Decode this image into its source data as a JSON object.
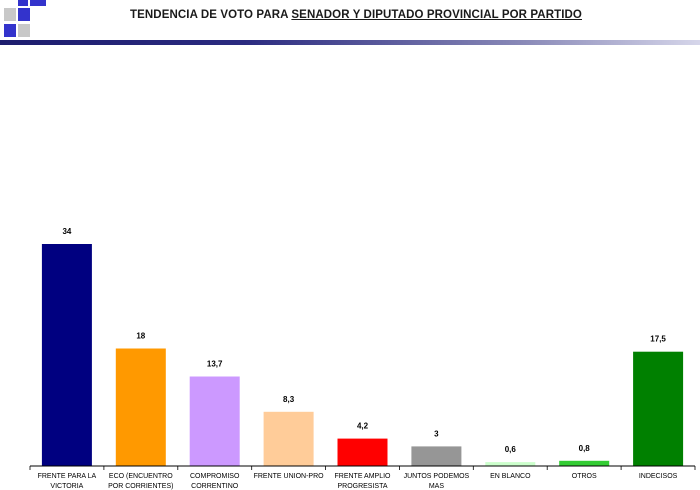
{
  "header": {
    "title_prefix": "TENDENCIA DE VOTO PARA ",
    "title_underlined": "SENADOR Y DIPUTADO PROVINCIAL POR PARTIDO"
  },
  "chart_data": {
    "type": "bar",
    "title": "TENDENCIA DE VOTO PARA SENADOR Y DIPUTADO PROVINCIAL POR PARTIDO",
    "xlabel": "",
    "ylabel": "",
    "ylim": [
      0,
      34
    ],
    "grid": false,
    "legend": "none",
    "categories": [
      [
        "FRENTE PARA LA",
        "VICTORIA"
      ],
      [
        "ECO (ENCUENTRO",
        "POR CORRIENTES)"
      ],
      [
        "COMPROMISO",
        "CORRENTINO"
      ],
      [
        "FRENTE UNION-PRO"
      ],
      [
        "FRENTE AMPLIO",
        "PROGRESISTA"
      ],
      [
        "JUNTOS PODEMOS",
        "MAS"
      ],
      [
        "EN BLANCO"
      ],
      [
        "OTROS"
      ],
      [
        "INDECISOS"
      ]
    ],
    "values": [
      34,
      18,
      13.7,
      8.3,
      4.2,
      3,
      0.6,
      0.8,
      17.5
    ],
    "value_labels": [
      "34",
      "18",
      "13,7",
      "8,3",
      "4,2",
      "3",
      "0,6",
      "0,8",
      "17,5"
    ],
    "colors": [
      "#000080",
      "#ff9900",
      "#cc99ff",
      "#ffcc99",
      "#ff0000",
      "#969696",
      "#ccffcc",
      "#33cc33",
      "#008000"
    ]
  }
}
